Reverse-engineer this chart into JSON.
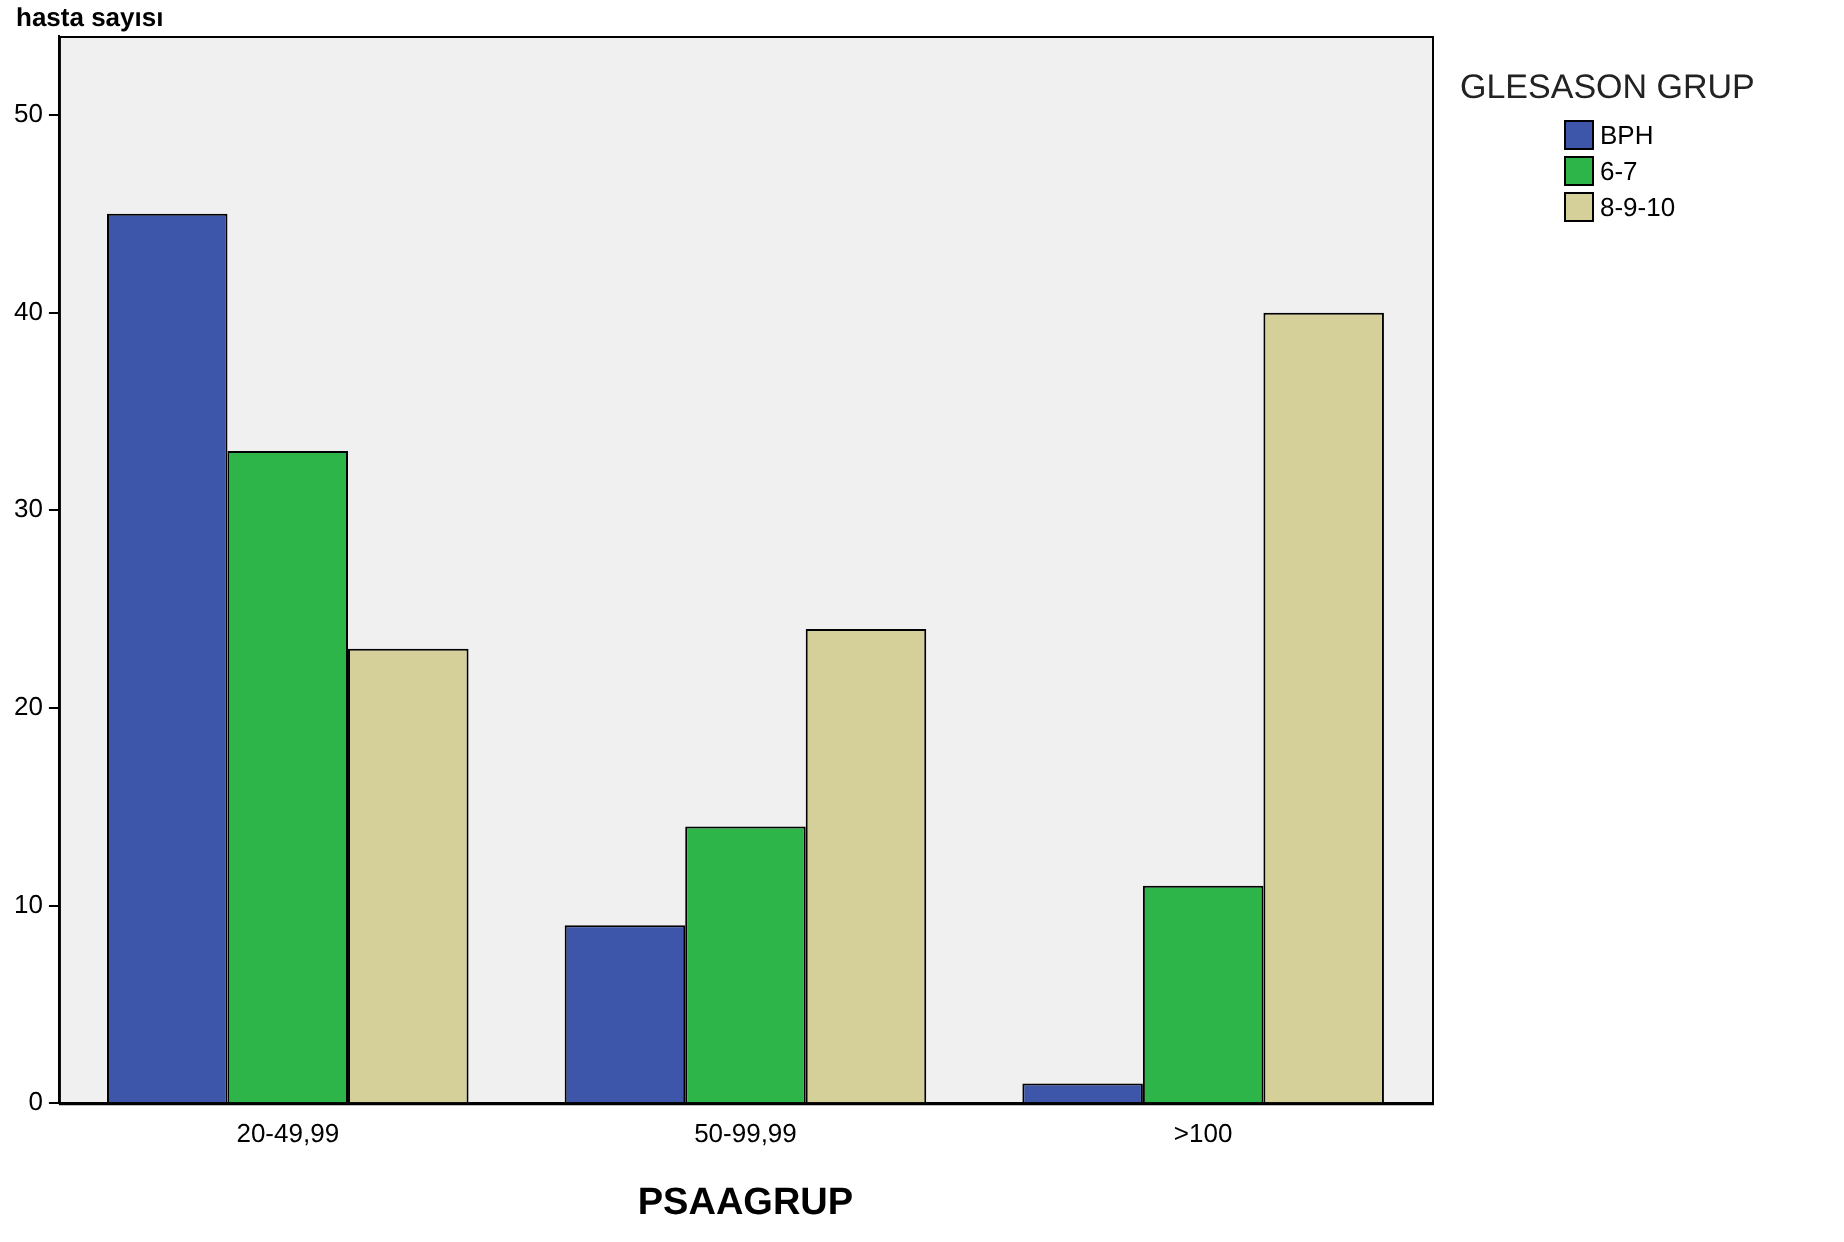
{
  "chart_data": {
    "type": "bar",
    "ylabel": "hasta sayısı",
    "xlabel": "PSAAGRUP",
    "legend_title": "GLESASON GRUP",
    "legend": "top right",
    "grid": false,
    "categories": [
      "20-49,99",
      "50-99,99",
      ">100"
    ],
    "series": [
      {
        "name": "BPH",
        "color": "#3d56aa",
        "values": [
          45,
          9,
          1
        ]
      },
      {
        "name": "6-7",
        "color": "#2db54a",
        "values": [
          33,
          14,
          11
        ]
      },
      {
        "name": "8-9-10",
        "color": "#d5d09a",
        "values": [
          23,
          24,
          40
        ]
      }
    ],
    "ylim": [
      0,
      54
    ],
    "yticks": [
      0,
      10,
      20,
      30,
      40,
      50
    ]
  }
}
